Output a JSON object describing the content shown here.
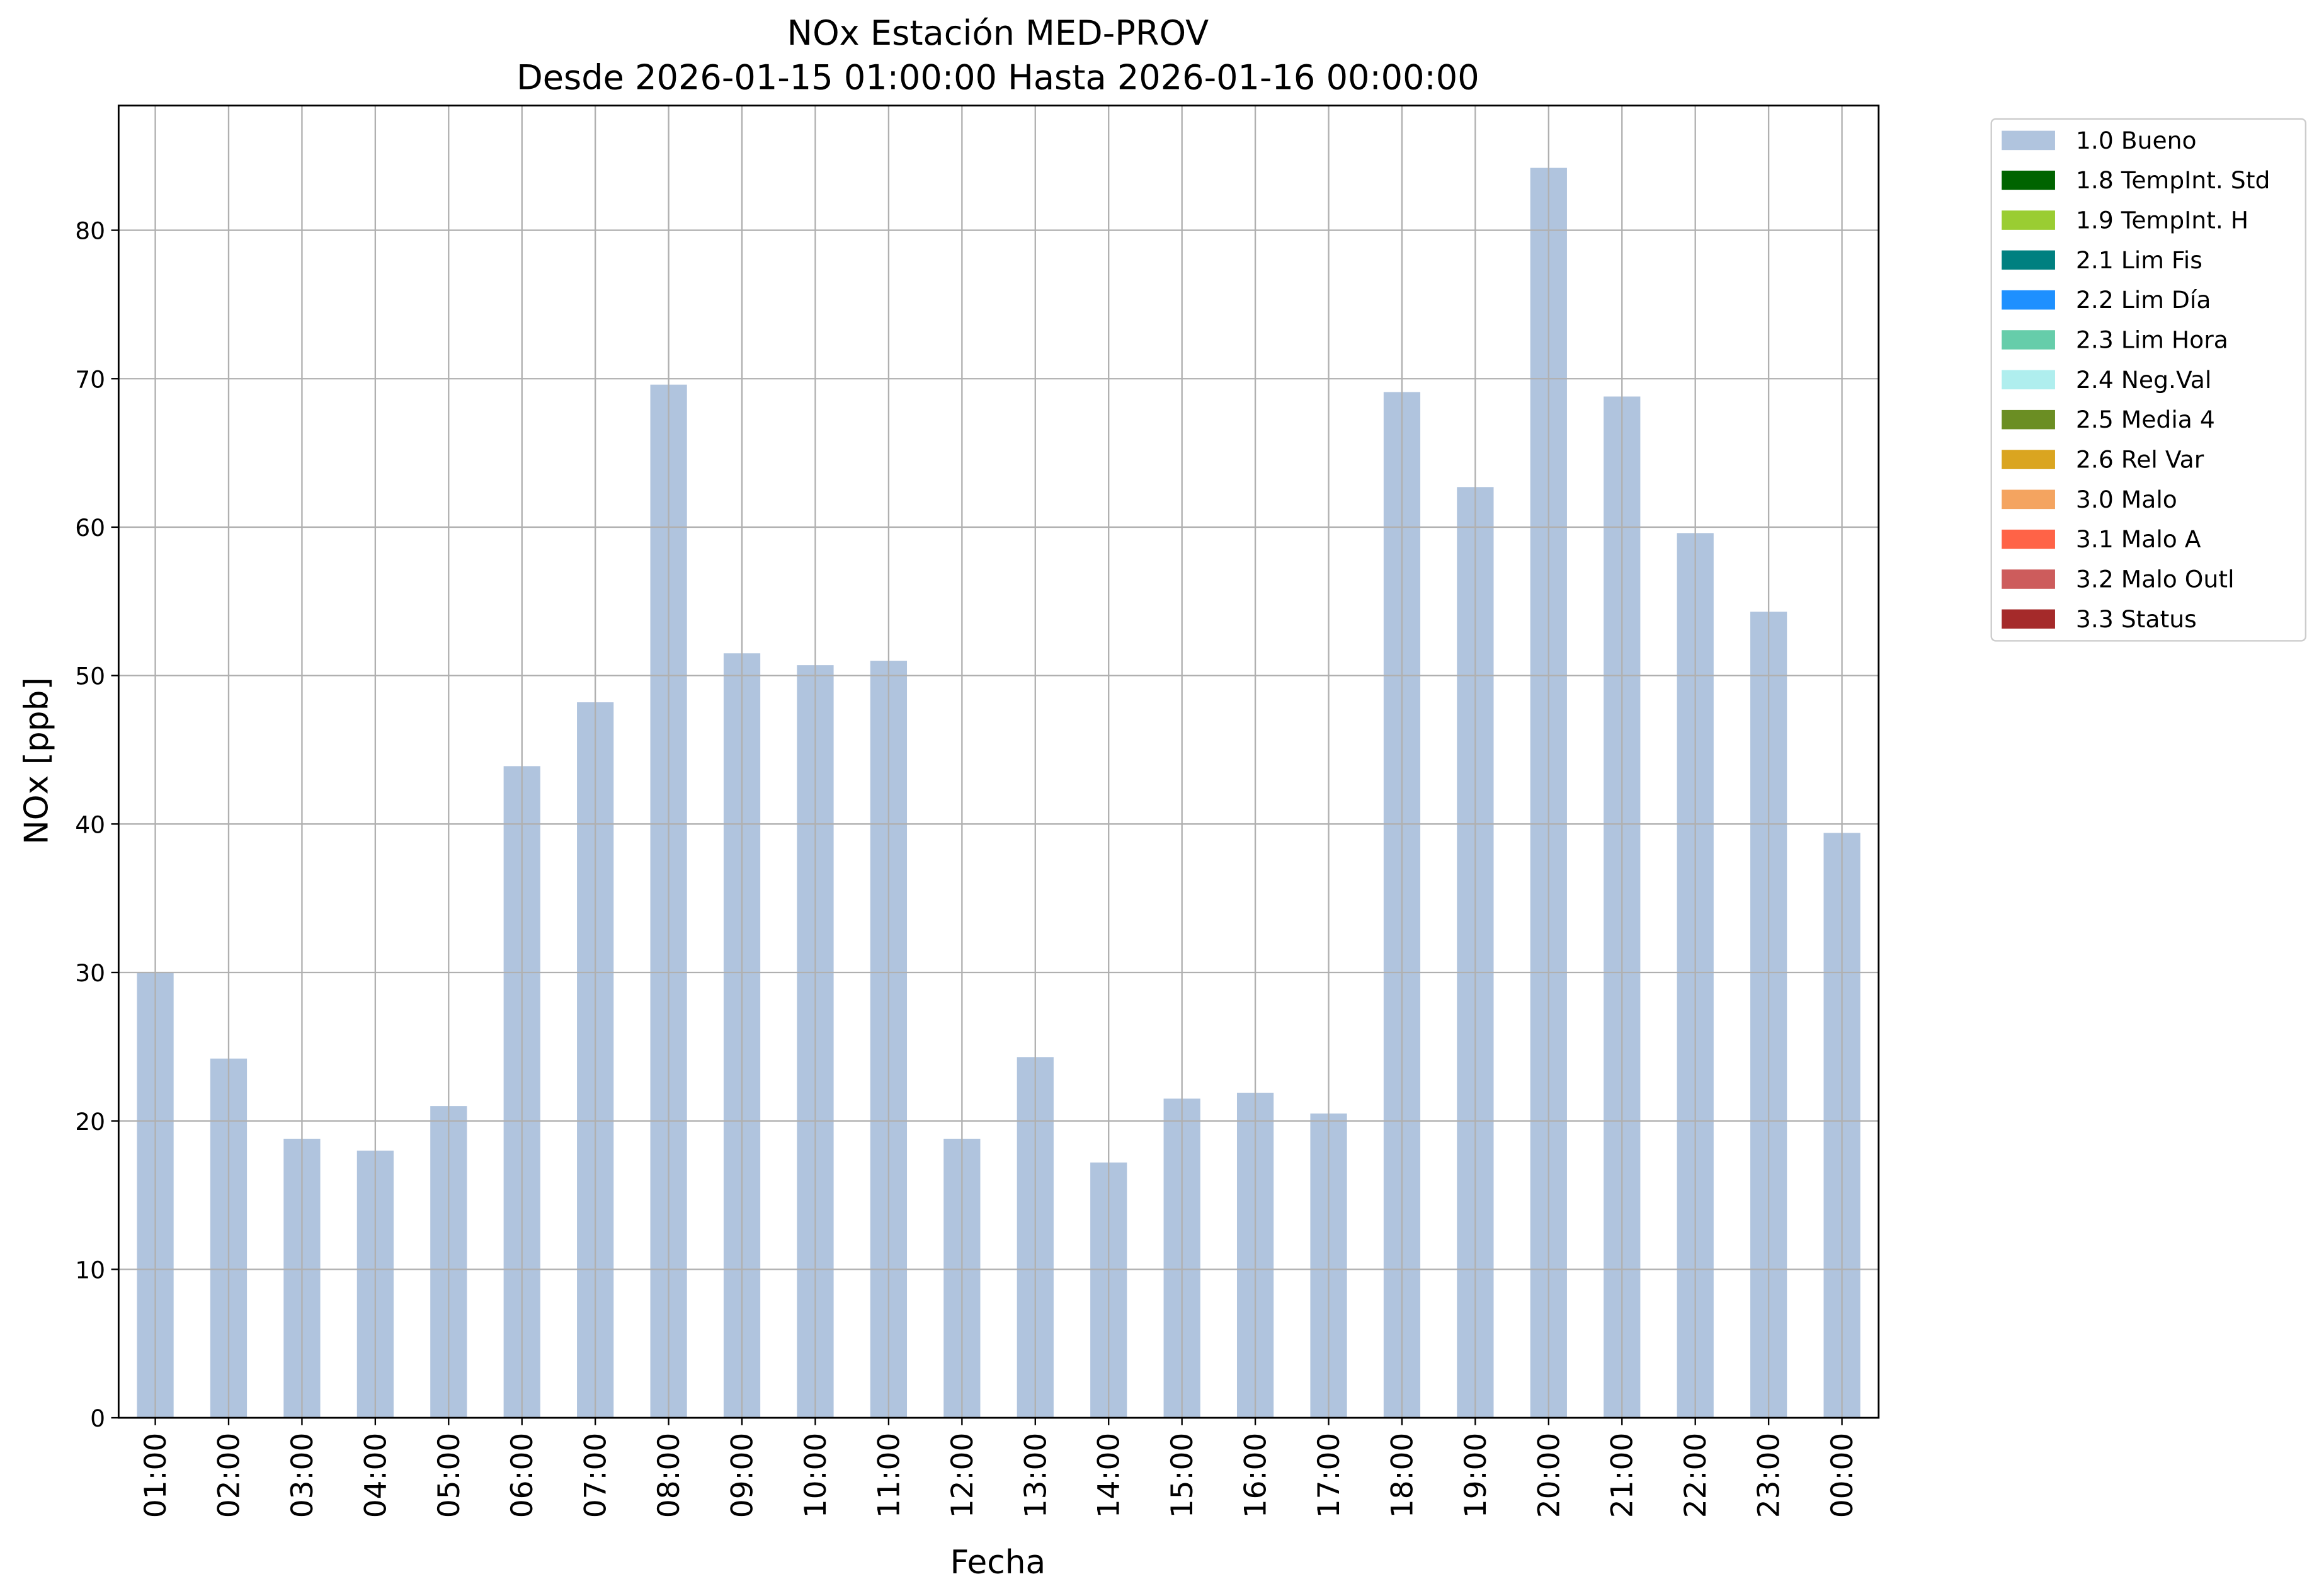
{
  "chart_data": {
    "type": "stacked_bar",
    "title": "NOx Estación MED-PROV",
    "subtitle": "Desde 2026-01-15 01:00:00 Hasta 2026-01-16 00:00:00",
    "x_label": "Fecha",
    "y_label": "NOx [ppb]",
    "categories": [
      "01:00",
      "02:00",
      "03:00",
      "04:00",
      "05:00",
      "06:00",
      "07:00",
      "08:00",
      "09:00",
      "10:00",
      "11:00",
      "12:00",
      "13:00",
      "14:00",
      "15:00",
      "16:00",
      "17:00",
      "18:00",
      "19:00",
      "20:00",
      "21:00",
      "22:00",
      "23:00",
      "00:00"
    ],
    "series": [
      {
        "name": "1.0 Bueno",
        "color": "#b0c4de",
        "values": [
          30.0,
          24.2,
          18.8,
          18.0,
          21.0,
          43.9,
          48.2,
          69.6,
          51.5,
          50.7,
          51.0,
          18.8,
          24.3,
          17.2,
          21.5,
          21.9,
          20.5,
          69.1,
          62.7,
          84.2,
          68.8,
          59.6,
          54.3,
          39.4
        ]
      },
      {
        "name": "1.8 TempInt. Std",
        "color": "#006400",
        "values": [
          0,
          0,
          0,
          0,
          0,
          0,
          0,
          0,
          0,
          0,
          0,
          0,
          0,
          0,
          0,
          0,
          0,
          0,
          0,
          0,
          0,
          0,
          0,
          0
        ]
      },
      {
        "name": "1.9 TempInt. H",
        "color": "#9acd32",
        "values": [
          0,
          0,
          0,
          0,
          0,
          0,
          0,
          0,
          0,
          0,
          0,
          0,
          0,
          0,
          0,
          0,
          0,
          0,
          0,
          0,
          0,
          0,
          0,
          0
        ]
      },
      {
        "name": "2.1 Lim Fis",
        "color": "#008080",
        "values": [
          0,
          0,
          0,
          0,
          0,
          0,
          0,
          0,
          0,
          0,
          0,
          0,
          0,
          0,
          0,
          0,
          0,
          0,
          0,
          0,
          0,
          0,
          0,
          0
        ]
      },
      {
        "name": "2.2 Lim Día",
        "color": "#1e90ff",
        "values": [
          0,
          0,
          0,
          0,
          0,
          0,
          0,
          0,
          0,
          0,
          0,
          0,
          0,
          0,
          0,
          0,
          0,
          0,
          0,
          0,
          0,
          0,
          0,
          0
        ]
      },
      {
        "name": "2.3 Lim Hora",
        "color": "#66cdaa",
        "values": [
          0,
          0,
          0,
          0,
          0,
          0,
          0,
          0,
          0,
          0,
          0,
          0,
          0,
          0,
          0,
          0,
          0,
          0,
          0,
          0,
          0,
          0,
          0,
          0
        ]
      },
      {
        "name": "2.4 Neg.Val",
        "color": "#afeeee",
        "values": [
          0,
          0,
          0,
          0,
          0,
          0,
          0,
          0,
          0,
          0,
          0,
          0,
          0,
          0,
          0,
          0,
          0,
          0,
          0,
          0,
          0,
          0,
          0,
          0
        ]
      },
      {
        "name": "2.5 Media 4",
        "color": "#6b8e23",
        "values": [
          0,
          0,
          0,
          0,
          0,
          0,
          0,
          0,
          0,
          0,
          0,
          0,
          0,
          0,
          0,
          0,
          0,
          0,
          0,
          0,
          0,
          0,
          0,
          0
        ]
      },
      {
        "name": "2.6 Rel Var",
        "color": "#daa520",
        "values": [
          0,
          0,
          0,
          0,
          0,
          0,
          0,
          0,
          0,
          0,
          0,
          0,
          0,
          0,
          0,
          0,
          0,
          0,
          0,
          0,
          0,
          0,
          0,
          0
        ]
      },
      {
        "name": "3.0 Malo",
        "color": "#f4a460",
        "values": [
          0,
          0,
          0,
          0,
          0,
          0,
          0,
          0,
          0,
          0,
          0,
          0,
          0,
          0,
          0,
          0,
          0,
          0,
          0,
          0,
          0,
          0,
          0,
          0
        ]
      },
      {
        "name": "3.1 Malo A",
        "color": "#ff6347",
        "values": [
          0,
          0,
          0,
          0,
          0,
          0,
          0,
          0,
          0,
          0,
          0,
          0,
          0,
          0,
          0,
          0,
          0,
          0,
          0,
          0,
          0,
          0,
          0,
          0
        ]
      },
      {
        "name": "3.2 Malo Outl",
        "color": "#cd5c5c",
        "values": [
          0,
          0,
          0,
          0,
          0,
          0,
          0,
          0,
          0,
          0,
          0,
          0,
          0,
          0,
          0,
          0,
          0,
          0,
          0,
          0,
          0,
          0,
          0,
          0
        ]
      },
      {
        "name": "3.3 Status",
        "color": "#a52a2a",
        "values": [
          0,
          0,
          0,
          0,
          0,
          0,
          0,
          0,
          0,
          0,
          0,
          0,
          0,
          0,
          0,
          0,
          0,
          0,
          0,
          0,
          0,
          0,
          0,
          0
        ]
      }
    ],
    "ylim": [
      0,
      88.4
    ],
    "yticks": [
      0,
      10,
      20,
      30,
      40,
      50,
      60,
      70,
      80
    ],
    "grid": true,
    "legend": "outside-upper-right"
  }
}
